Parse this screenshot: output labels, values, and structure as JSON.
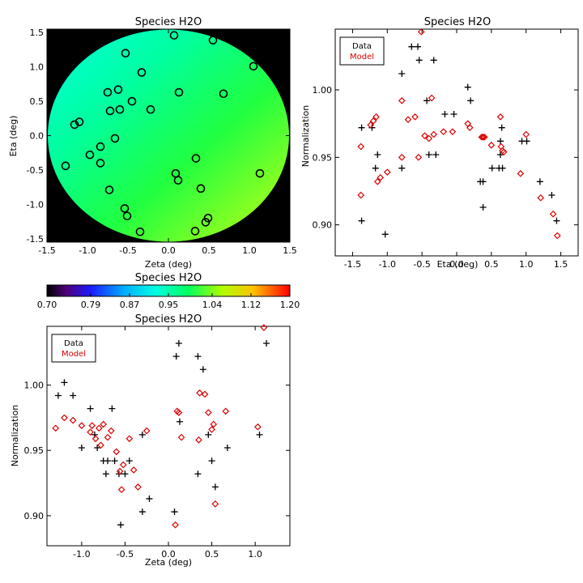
{
  "chart_data": [
    {
      "id": "map",
      "type": "heatmap",
      "title": "Species H2O",
      "xlabel": "Zeta (deg)",
      "ylabel": "Eta (deg)",
      "xlim": [
        -1.5,
        1.5
      ],
      "ylim": [
        -1.55,
        1.55
      ],
      "xticks": [
        "-1.5",
        "-1.0",
        "-0.5",
        "0.0",
        "0.5",
        "1.0",
        "1.5"
      ],
      "yticks": [
        "-1.5",
        "-1.0",
        "-0.5",
        "0.0",
        "0.5",
        "1.0",
        "1.5"
      ],
      "field_min": 0.87,
      "field_max": 1.08,
      "colorbar_ticks": [
        "0.70",
        "0.79",
        "0.87",
        "0.95",
        "1.04",
        "1.12",
        "1.20"
      ],
      "colorbar_range": [
        0.7,
        1.2
      ],
      "points": [
        [
          0.07,
          1.46
        ],
        [
          0.55,
          1.39
        ],
        [
          -0.53,
          1.2
        ],
        [
          1.05,
          1.01
        ],
        [
          -0.33,
          0.92
        ],
        [
          -0.75,
          0.63
        ],
        [
          -0.62,
          0.67
        ],
        [
          0.13,
          0.63
        ],
        [
          0.68,
          0.61
        ],
        [
          -0.45,
          0.5
        ],
        [
          -0.72,
          0.36
        ],
        [
          -0.6,
          0.38
        ],
        [
          -0.22,
          0.38
        ],
        [
          -1.1,
          0.2
        ],
        [
          -1.16,
          0.16
        ],
        [
          -0.66,
          -0.04
        ],
        [
          -0.84,
          -0.16
        ],
        [
          -0.97,
          -0.28
        ],
        [
          -0.84,
          -0.4
        ],
        [
          -1.27,
          -0.44
        ],
        [
          0.34,
          -0.33
        ],
        [
          0.09,
          -0.55
        ],
        [
          0.12,
          -0.65
        ],
        [
          1.13,
          -0.55
        ],
        [
          -0.73,
          -0.79
        ],
        [
          0.4,
          -0.77
        ],
        [
          -0.54,
          -1.06
        ],
        [
          -0.51,
          -1.17
        ],
        [
          0.49,
          -1.2
        ],
        [
          0.46,
          -1.26
        ],
        [
          -0.35,
          -1.4
        ],
        [
          0.33,
          -1.39
        ]
      ]
    },
    {
      "id": "eta",
      "type": "scatter",
      "title": "Species H2O",
      "xlabel": "Eta (deg)",
      "ylabel": "Normalization",
      "xlim": [
        -1.75,
        1.75
      ],
      "ylim": [
        0.877,
        1.045
      ],
      "xticks": [
        "-1.5",
        "-1.0",
        "-0.5",
        "0.0",
        "0.5",
        "1.0",
        "1.5"
      ],
      "yticks": [
        "0.90",
        "0.95",
        "1.00"
      ],
      "legend": [
        "Data",
        "Model"
      ],
      "series": [
        {
          "name": "Data",
          "marker": "plus",
          "color": "#000000",
          "points": [
            [
              -1.37,
              0.972
            ],
            [
              -1.37,
              0.903
            ],
            [
              -1.22,
              0.972
            ],
            [
              -1.17,
              0.942
            ],
            [
              -1.14,
              0.952
            ],
            [
              -1.03,
              0.893
            ],
            [
              -0.79,
              0.942
            ],
            [
              -0.79,
              1.012
            ],
            [
              -0.65,
              1.032
            ],
            [
              -0.56,
              1.032
            ],
            [
              -0.54,
              1.022
            ],
            [
              -0.43,
              0.992
            ],
            [
              -0.4,
              0.952
            ],
            [
              -0.33,
              1.022
            ],
            [
              -0.3,
              0.952
            ],
            [
              -0.17,
              0.982
            ],
            [
              -0.04,
              0.982
            ],
            [
              0.16,
              1.002
            ],
            [
              0.2,
              0.992
            ],
            [
              0.34,
              0.932
            ],
            [
              0.38,
              0.932
            ],
            [
              0.38,
              0.913
            ],
            [
              0.51,
              0.942
            ],
            [
              0.61,
              0.942
            ],
            [
              0.63,
              0.962
            ],
            [
              0.63,
              0.952
            ],
            [
              0.66,
              0.942
            ],
            [
              0.65,
              0.972
            ],
            [
              0.94,
              0.962
            ],
            [
              1.01,
              0.962
            ],
            [
              1.2,
              0.932
            ],
            [
              1.37,
              0.922
            ],
            [
              1.44,
              0.903
            ]
          ]
        },
        {
          "name": "Model",
          "marker": "diamond",
          "color": "#dd0000",
          "points": [
            [
              -1.38,
              0.922
            ],
            [
              -1.38,
              0.958
            ],
            [
              -1.24,
              0.974
            ],
            [
              -1.2,
              0.977
            ],
            [
              -1.16,
              0.98
            ],
            [
              -1.14,
              0.932
            ],
            [
              -1.1,
              0.935
            ],
            [
              -1.0,
              0.939
            ],
            [
              -0.79,
              0.95
            ],
            [
              -0.79,
              0.992
            ],
            [
              -0.7,
              0.978
            ],
            [
              -0.6,
              0.98
            ],
            [
              -0.55,
              0.95
            ],
            [
              -0.51,
              1.043
            ],
            [
              -0.46,
              0.966
            ],
            [
              -0.4,
              0.964
            ],
            [
              -0.36,
              0.994
            ],
            [
              -0.33,
              0.967
            ],
            [
              -0.19,
              0.969
            ],
            [
              -0.06,
              0.969
            ],
            [
              0.16,
              0.975
            ],
            [
              0.19,
              0.972
            ],
            [
              0.36,
              0.965
            ],
            [
              0.38,
              0.965
            ],
            [
              0.4,
              0.965
            ],
            [
              0.5,
              0.959
            ],
            [
              0.63,
              0.98
            ],
            [
              0.64,
              0.958
            ],
            [
              0.66,
              0.955
            ],
            [
              0.68,
              0.954
            ],
            [
              0.92,
              0.938
            ],
            [
              1.0,
              0.967
            ],
            [
              1.21,
              0.92
            ],
            [
              1.39,
              0.908
            ],
            [
              1.45,
              0.892
            ]
          ]
        }
      ]
    },
    {
      "id": "zeta",
      "type": "scatter",
      "title": "Species H2O",
      "xlabel": "Zeta (deg)",
      "ylabel": "Normalization",
      "xlim": [
        -1.4,
        1.4
      ],
      "ylim": [
        0.877,
        1.045
      ],
      "xticks": [
        "-1.0",
        "-0.5",
        "0.0",
        "0.5",
        "1.0"
      ],
      "yticks": [
        "0.90",
        "0.95",
        "1.00"
      ],
      "legend": [
        "Data",
        "Model"
      ],
      "series": [
        {
          "name": "Data",
          "marker": "plus",
          "color": "#000000",
          "points": [
            [
              -1.27,
              0.992
            ],
            [
              -1.2,
              1.002
            ],
            [
              -1.1,
              0.992
            ],
            [
              -1.0,
              0.952
            ],
            [
              -0.9,
              0.982
            ],
            [
              -0.85,
              0.962
            ],
            [
              -0.82,
              0.952
            ],
            [
              -0.75,
              0.942
            ],
            [
              -0.72,
              0.932
            ],
            [
              -0.7,
              0.942
            ],
            [
              -0.65,
              0.982
            ],
            [
              -0.62,
              0.942
            ],
            [
              -0.57,
              0.932
            ],
            [
              -0.55,
              0.893
            ],
            [
              -0.5,
              0.932
            ],
            [
              -0.45,
              0.942
            ],
            [
              -0.3,
              0.903
            ],
            [
              -0.3,
              0.962
            ],
            [
              -0.22,
              0.913
            ],
            [
              0.07,
              0.903
            ],
            [
              0.09,
              1.022
            ],
            [
              0.12,
              1.032
            ],
            [
              0.13,
              0.972
            ],
            [
              0.34,
              1.022
            ],
            [
              0.34,
              0.932
            ],
            [
              0.4,
              1.012
            ],
            [
              0.46,
              0.962
            ],
            [
              0.5,
              0.942
            ],
            [
              0.54,
              0.922
            ],
            [
              0.68,
              0.952
            ],
            [
              1.05,
              0.962
            ],
            [
              1.13,
              1.032
            ]
          ]
        },
        {
          "name": "Model",
          "marker": "diamond",
          "color": "#dd0000",
          "points": [
            [
              -1.3,
              0.967
            ],
            [
              -1.2,
              0.975
            ],
            [
              -1.1,
              0.973
            ],
            [
              -1.0,
              0.969
            ],
            [
              -0.9,
              0.964
            ],
            [
              -0.88,
              0.969
            ],
            [
              -0.84,
              0.959
            ],
            [
              -0.8,
              0.967
            ],
            [
              -0.78,
              0.954
            ],
            [
              -0.75,
              0.97
            ],
            [
              -0.7,
              0.96
            ],
            [
              -0.66,
              0.965
            ],
            [
              -0.6,
              0.949
            ],
            [
              -0.56,
              0.934
            ],
            [
              -0.54,
              0.92
            ],
            [
              -0.52,
              0.939
            ],
            [
              -0.45,
              0.959
            ],
            [
              -0.4,
              0.935
            ],
            [
              -0.35,
              0.922
            ],
            [
              -0.25,
              0.965
            ],
            [
              0.08,
              0.893
            ],
            [
              0.1,
              0.98
            ],
            [
              0.12,
              0.979
            ],
            [
              0.15,
              0.96
            ],
            [
              0.35,
              0.958
            ],
            [
              0.36,
              0.994
            ],
            [
              0.42,
              0.993
            ],
            [
              0.46,
              0.979
            ],
            [
              0.5,
              0.966
            ],
            [
              0.52,
              0.97
            ],
            [
              0.54,
              0.909
            ],
            [
              0.66,
              0.98
            ],
            [
              1.03,
              0.968
            ],
            [
              1.1,
              1.044
            ]
          ]
        }
      ]
    }
  ]
}
